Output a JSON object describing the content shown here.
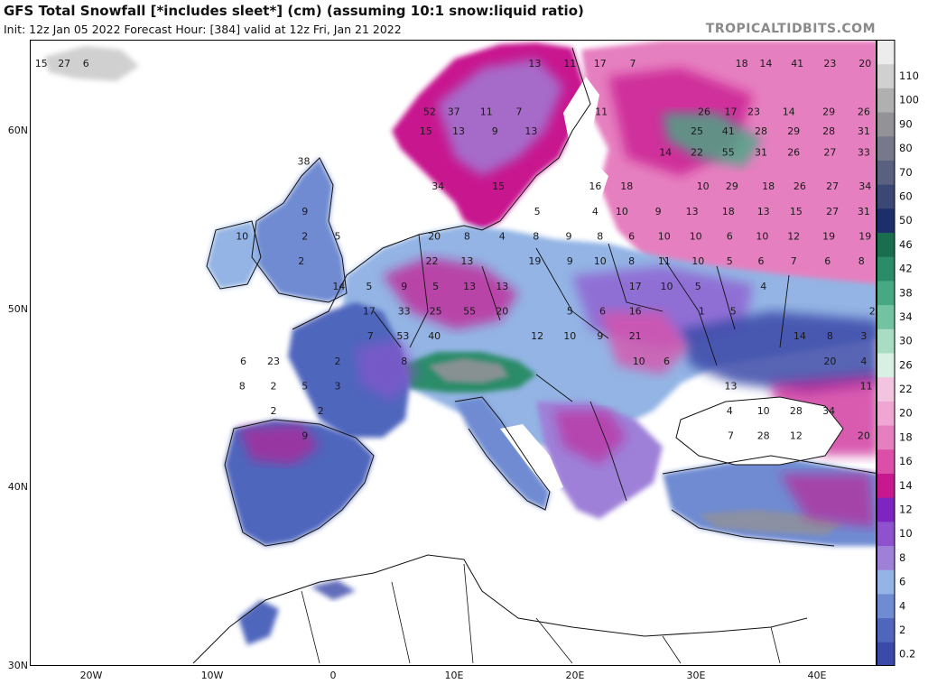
{
  "header": {
    "title": "GFS Total Snowfall [*includes sleet*] (cm) (assuming 10:1 snow:liquid ratio)",
    "subtitle": "Init: 12z Jan 05 2022   Forecast Hour: [384]   valid at 12z Fri, Jan 21 2022",
    "brand": "TROPICALTIDBITS.COM"
  },
  "axes": {
    "lat_labels": [
      "60N",
      "50N",
      "40N",
      "30N"
    ],
    "lon_labels": [
      "20W",
      "10W",
      "0",
      "10E",
      "20E",
      "30E",
      "40E"
    ]
  },
  "legend": {
    "bins": [
      {
        "label": "0.2",
        "color": "#3b4aa8"
      },
      {
        "label": "2",
        "color": "#5066bd"
      },
      {
        "label": "4",
        "color": "#6f8bd2"
      },
      {
        "label": "6",
        "color": "#93b4e4"
      },
      {
        "label": "8",
        "color": "#9e80d8"
      },
      {
        "label": "10",
        "color": "#8f52cf"
      },
      {
        "label": "12",
        "color": "#7e24c0"
      },
      {
        "label": "14",
        "color": "#c8188f"
      },
      {
        "label": "16",
        "color": "#db4fa8"
      },
      {
        "label": "18",
        "color": "#e67fbf"
      },
      {
        "label": "20",
        "color": "#efa6d2"
      },
      {
        "label": "22",
        "color": "#f3c4df"
      },
      {
        "label": "26",
        "color": "#d8f0e4"
      },
      {
        "label": "30",
        "color": "#a8dcc3"
      },
      {
        "label": "34",
        "color": "#72c3a2"
      },
      {
        "label": "38",
        "color": "#46a983"
      },
      {
        "label": "42",
        "color": "#2b8c69"
      },
      {
        "label": "46",
        "color": "#1a6e50"
      },
      {
        "label": "50",
        "color": "#1d2f6a"
      },
      {
        "label": "60",
        "color": "#3b4775"
      },
      {
        "label": "70",
        "color": "#5a6080"
      },
      {
        "label": "80",
        "color": "#77788c"
      },
      {
        "label": "90",
        "color": "#929297"
      },
      {
        "label": "100",
        "color": "#b0b0b0"
      },
      {
        "label": "110",
        "color": "#d0d0d0"
      },
      {
        "label": "",
        "color": "#ececec"
      }
    ]
  },
  "map_values": [
    {
      "v": "15",
      "lon": -24.2,
      "lat": 63.8
    },
    {
      "v": "27",
      "lon": -22.3,
      "lat": 63.8
    },
    {
      "v": "6",
      "lon": -20.5,
      "lat": 63.8
    },
    {
      "v": "52",
      "lon": 7.9,
      "lat": 61.1
    },
    {
      "v": "37",
      "lon": 9.9,
      "lat": 61.1
    },
    {
      "v": "11",
      "lon": 12.6,
      "lat": 61.1
    },
    {
      "v": "7",
      "lon": 15.3,
      "lat": 61.1
    },
    {
      "v": "15",
      "lon": 7.6,
      "lat": 60.0
    },
    {
      "v": "13",
      "lon": 10.3,
      "lat": 60.0
    },
    {
      "v": "9",
      "lon": 13.3,
      "lat": 60.0
    },
    {
      "v": "13",
      "lon": 16.3,
      "lat": 60.0
    },
    {
      "v": "13",
      "lon": 16.6,
      "lat": 63.8
    },
    {
      "v": "11",
      "lon": 19.5,
      "lat": 63.8
    },
    {
      "v": "17",
      "lon": 22.0,
      "lat": 63.8
    },
    {
      "v": "7",
      "lon": 24.7,
      "lat": 63.8
    },
    {
      "v": "18",
      "lon": 33.7,
      "lat": 63.8
    },
    {
      "v": "14",
      "lon": 35.7,
      "lat": 63.8
    },
    {
      "v": "41",
      "lon": 38.3,
      "lat": 63.8
    },
    {
      "v": "23",
      "lon": 41.0,
      "lat": 63.8
    },
    {
      "v": "20",
      "lon": 43.9,
      "lat": 63.8
    },
    {
      "v": "11",
      "lon": 22.1,
      "lat": 61.1
    },
    {
      "v": "26",
      "lon": 30.6,
      "lat": 61.1
    },
    {
      "v": "17",
      "lon": 32.8,
      "lat": 61.1
    },
    {
      "v": "23",
      "lon": 34.7,
      "lat": 61.1
    },
    {
      "v": "14",
      "lon": 37.6,
      "lat": 61.1
    },
    {
      "v": "29",
      "lon": 40.9,
      "lat": 61.1
    },
    {
      "v": "26",
      "lon": 43.8,
      "lat": 61.1
    },
    {
      "v": "25",
      "lon": 30.0,
      "lat": 60.0
    },
    {
      "v": "41",
      "lon": 32.6,
      "lat": 60.0
    },
    {
      "v": "28",
      "lon": 35.3,
      "lat": 60.0
    },
    {
      "v": "29",
      "lon": 38.0,
      "lat": 60.0
    },
    {
      "v": "28",
      "lon": 40.9,
      "lat": 60.0
    },
    {
      "v": "31",
      "lon": 43.8,
      "lat": 60.0
    },
    {
      "v": "14",
      "lon": 27.4,
      "lat": 58.8
    },
    {
      "v": "22",
      "lon": 30.0,
      "lat": 58.8
    },
    {
      "v": "55",
      "lon": 32.6,
      "lat": 58.8
    },
    {
      "v": "31",
      "lon": 35.3,
      "lat": 58.8
    },
    {
      "v": "26",
      "lon": 38.0,
      "lat": 58.8
    },
    {
      "v": "27",
      "lon": 41.0,
      "lat": 58.8
    },
    {
      "v": "33",
      "lon": 43.8,
      "lat": 58.8
    },
    {
      "v": "38",
      "lon": -2.5,
      "lat": 58.3
    },
    {
      "v": "34",
      "lon": 8.6,
      "lat": 56.9
    },
    {
      "v": "15",
      "lon": 13.6,
      "lat": 56.9
    },
    {
      "v": "16",
      "lon": 21.6,
      "lat": 56.9
    },
    {
      "v": "18",
      "lon": 24.2,
      "lat": 56.9
    },
    {
      "v": "10",
      "lon": 30.5,
      "lat": 56.9
    },
    {
      "v": "29",
      "lon": 32.9,
      "lat": 56.9
    },
    {
      "v": "18",
      "lon": 35.9,
      "lat": 56.9
    },
    {
      "v": "26",
      "lon": 38.5,
      "lat": 56.9
    },
    {
      "v": "27",
      "lon": 41.2,
      "lat": 56.9
    },
    {
      "v": "34",
      "lon": 43.9,
      "lat": 56.9
    },
    {
      "v": "5",
      "lon": 16.8,
      "lat": 55.5
    },
    {
      "v": "4",
      "lon": 21.6,
      "lat": 55.5
    },
    {
      "v": "10",
      "lon": 23.8,
      "lat": 55.5
    },
    {
      "v": "9",
      "lon": 26.8,
      "lat": 55.5
    },
    {
      "v": "13",
      "lon": 29.6,
      "lat": 55.5
    },
    {
      "v": "18",
      "lon": 32.6,
      "lat": 55.5
    },
    {
      "v": "13",
      "lon": 35.5,
      "lat": 55.5
    },
    {
      "v": "15",
      "lon": 38.2,
      "lat": 55.5
    },
    {
      "v": "27",
      "lon": 41.2,
      "lat": 55.5
    },
    {
      "v": "31",
      "lon": 43.8,
      "lat": 55.5
    },
    {
      "v": "9",
      "lon": -2.4,
      "lat": 55.5
    },
    {
      "v": "10",
      "lon": -7.6,
      "lat": 54.1
    },
    {
      "v": "2",
      "lon": -2.4,
      "lat": 54.1
    },
    {
      "v": "5",
      "lon": 0.3,
      "lat": 54.1
    },
    {
      "v": "20",
      "lon": 8.3,
      "lat": 54.1
    },
    {
      "v": "8",
      "lon": 11.0,
      "lat": 54.1
    },
    {
      "v": "4",
      "lon": 13.9,
      "lat": 54.1
    },
    {
      "v": "8",
      "lon": 16.7,
      "lat": 54.1
    },
    {
      "v": "9",
      "lon": 19.4,
      "lat": 54.1
    },
    {
      "v": "8",
      "lon": 22.0,
      "lat": 54.1
    },
    {
      "v": "6",
      "lon": 24.6,
      "lat": 54.1
    },
    {
      "v": "10",
      "lon": 27.3,
      "lat": 54.1
    },
    {
      "v": "10",
      "lon": 29.9,
      "lat": 54.1
    },
    {
      "v": "6",
      "lon": 32.7,
      "lat": 54.1
    },
    {
      "v": "10",
      "lon": 35.4,
      "lat": 54.1
    },
    {
      "v": "12",
      "lon": 38.0,
      "lat": 54.1
    },
    {
      "v": "19",
      "lon": 40.9,
      "lat": 54.1
    },
    {
      "v": "19",
      "lon": 43.9,
      "lat": 54.1
    },
    {
      "v": "2",
      "lon": -2.7,
      "lat": 52.7
    },
    {
      "v": "22",
      "lon": 8.1,
      "lat": 52.7
    },
    {
      "v": "13",
      "lon": 11.0,
      "lat": 52.7
    },
    {
      "v": "19",
      "lon": 16.6,
      "lat": 52.7
    },
    {
      "v": "9",
      "lon": 19.5,
      "lat": 52.7
    },
    {
      "v": "10",
      "lon": 22.0,
      "lat": 52.7
    },
    {
      "v": "8",
      "lon": 24.6,
      "lat": 52.7
    },
    {
      "v": "11",
      "lon": 27.3,
      "lat": 52.7
    },
    {
      "v": "10",
      "lon": 30.1,
      "lat": 52.7
    },
    {
      "v": "5",
      "lon": 32.7,
      "lat": 52.7
    },
    {
      "v": "6",
      "lon": 35.3,
      "lat": 52.7
    },
    {
      "v": "7",
      "lon": 38.0,
      "lat": 52.7
    },
    {
      "v": "6",
      "lon": 40.8,
      "lat": 52.7
    },
    {
      "v": "8",
      "lon": 43.6,
      "lat": 52.7
    },
    {
      "v": "14",
      "lon": 0.4,
      "lat": 51.3
    },
    {
      "v": "5",
      "lon": 2.9,
      "lat": 51.3
    },
    {
      "v": "9",
      "lon": 5.8,
      "lat": 51.3
    },
    {
      "v": "5",
      "lon": 8.4,
      "lat": 51.3
    },
    {
      "v": "13",
      "lon": 11.2,
      "lat": 51.3
    },
    {
      "v": "13",
      "lon": 13.9,
      "lat": 51.3
    },
    {
      "v": "17",
      "lon": 24.9,
      "lat": 51.3
    },
    {
      "v": "10",
      "lon": 27.5,
      "lat": 51.3
    },
    {
      "v": "5",
      "lon": 30.1,
      "lat": 51.3
    },
    {
      "v": "4",
      "lon": 35.5,
      "lat": 51.3
    },
    {
      "v": "17",
      "lon": 2.9,
      "lat": 49.9
    },
    {
      "v": "33",
      "lon": 5.8,
      "lat": 49.9
    },
    {
      "v": "25",
      "lon": 8.4,
      "lat": 49.9
    },
    {
      "v": "55",
      "lon": 11.2,
      "lat": 49.9
    },
    {
      "v": "20",
      "lon": 13.9,
      "lat": 49.9
    },
    {
      "v": "5",
      "lon": 19.5,
      "lat": 49.9
    },
    {
      "v": "6",
      "lon": 22.2,
      "lat": 49.9
    },
    {
      "v": "16",
      "lon": 24.9,
      "lat": 49.9
    },
    {
      "v": "1",
      "lon": 30.4,
      "lat": 49.9
    },
    {
      "v": "5",
      "lon": 33.0,
      "lat": 49.9
    },
    {
      "v": "2",
      "lon": 44.5,
      "lat": 49.9
    },
    {
      "v": "7",
      "lon": 3.0,
      "lat": 48.5
    },
    {
      "v": "53",
      "lon": 5.7,
      "lat": 48.5
    },
    {
      "v": "40",
      "lon": 8.3,
      "lat": 48.5
    },
    {
      "v": "12",
      "lon": 16.8,
      "lat": 48.5
    },
    {
      "v": "10",
      "lon": 19.5,
      "lat": 48.5
    },
    {
      "v": "9",
      "lon": 22.0,
      "lat": 48.5
    },
    {
      "v": "21",
      "lon": 24.9,
      "lat": 48.5
    },
    {
      "v": "14",
      "lon": 38.5,
      "lat": 48.5
    },
    {
      "v": "8",
      "lon": 41.0,
      "lat": 48.5
    },
    {
      "v": "3",
      "lon": 43.8,
      "lat": 48.5
    },
    {
      "v": "6",
      "lon": -7.5,
      "lat": 47.1
    },
    {
      "v": "23",
      "lon": -5.0,
      "lat": 47.1
    },
    {
      "v": "2",
      "lon": 0.3,
      "lat": 47.1
    },
    {
      "v": "8",
      "lon": 5.8,
      "lat": 47.1
    },
    {
      "v": "10",
      "lon": 25.2,
      "lat": 47.1
    },
    {
      "v": "6",
      "lon": 27.5,
      "lat": 47.1
    },
    {
      "v": "20",
      "lon": 41.0,
      "lat": 47.1
    },
    {
      "v": "4",
      "lon": 43.8,
      "lat": 47.1
    },
    {
      "v": "8",
      "lon": -7.6,
      "lat": 45.7
    },
    {
      "v": "2",
      "lon": -5.0,
      "lat": 45.7
    },
    {
      "v": "5",
      "lon": -2.4,
      "lat": 45.7
    },
    {
      "v": "3",
      "lon": 0.3,
      "lat": 45.7
    },
    {
      "v": "13",
      "lon": 32.8,
      "lat": 45.7
    },
    {
      "v": "11",
      "lon": 44.0,
      "lat": 45.7
    },
    {
      "v": "2",
      "lon": -5.0,
      "lat": 44.3
    },
    {
      "v": "2",
      "lon": -1.1,
      "lat": 44.3
    },
    {
      "v": "4",
      "lon": 32.7,
      "lat": 44.3
    },
    {
      "v": "10",
      "lon": 35.5,
      "lat": 44.3
    },
    {
      "v": "28",
      "lon": 38.2,
      "lat": 44.3
    },
    {
      "v": "34",
      "lon": 40.9,
      "lat": 44.3
    },
    {
      "v": "9",
      "lon": -2.4,
      "lat": 42.9
    },
    {
      "v": "7",
      "lon": 32.8,
      "lat": 42.9
    },
    {
      "v": "28",
      "lon": 35.5,
      "lat": 42.9
    },
    {
      "v": "12",
      "lon": 38.2,
      "lat": 42.9
    },
    {
      "v": "20",
      "lon": 43.8,
      "lat": 42.9
    }
  ]
}
